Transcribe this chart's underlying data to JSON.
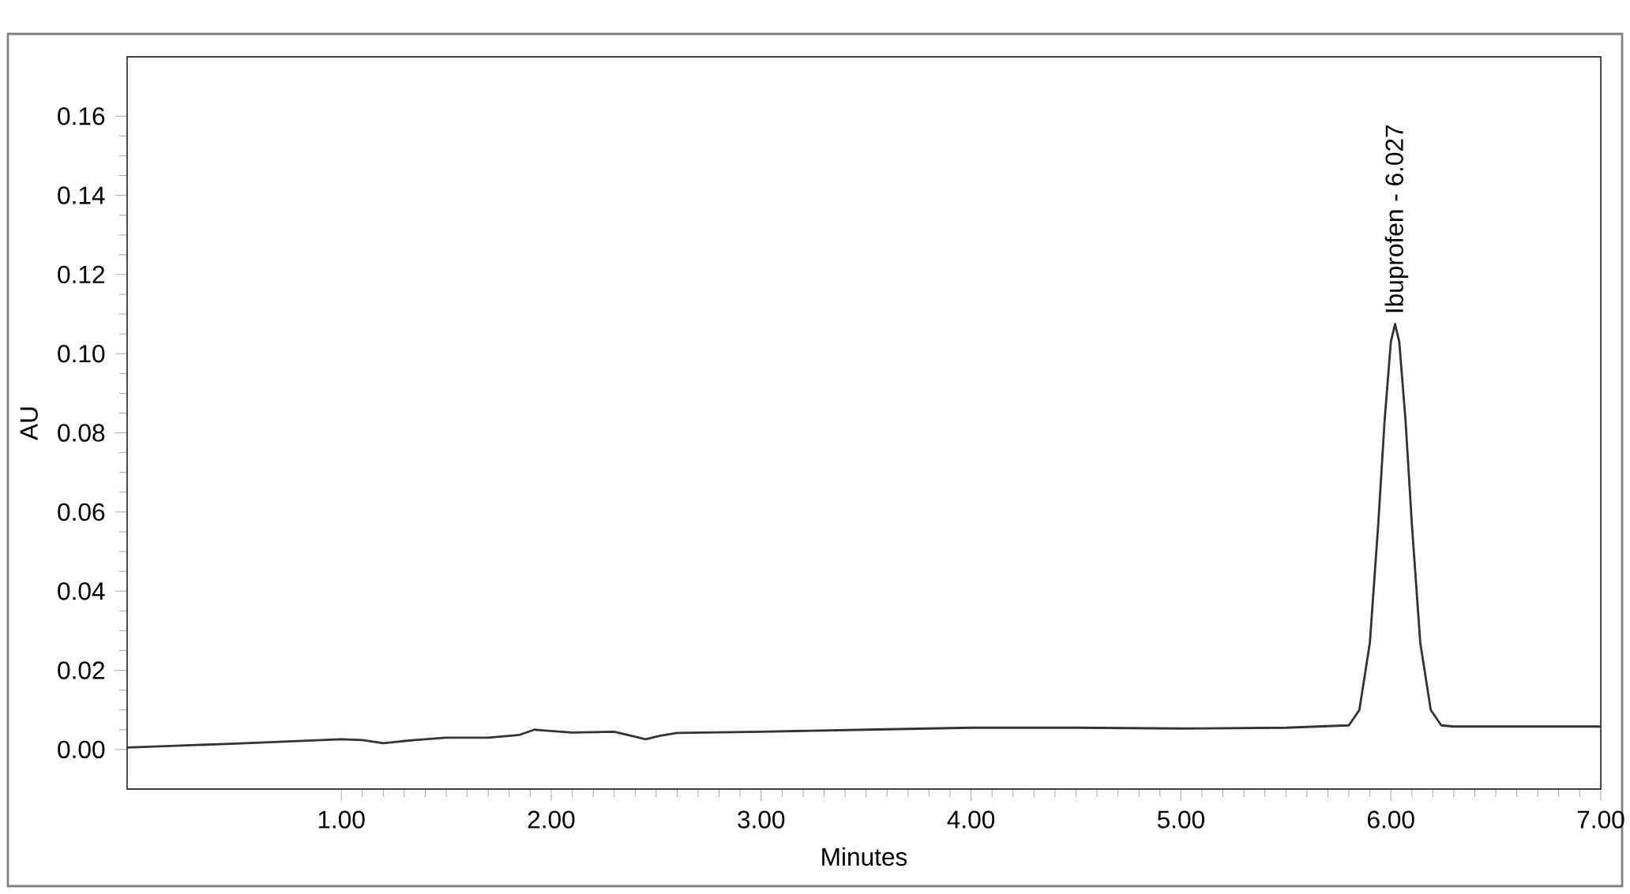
{
  "chart_data": {
    "type": "line",
    "xlabel": "Minutes",
    "ylabel": "AU",
    "color": "#333333",
    "x": [
      -0.02,
      0.5,
      1.0,
      1.1,
      1.2,
      1.35,
      1.5,
      1.7,
      1.85,
      1.92,
      1.97,
      2.1,
      2.3,
      2.38,
      2.45,
      2.52,
      2.6,
      3.0,
      3.5,
      4.0,
      4.5,
      5.0,
      5.5,
      5.8,
      5.85,
      5.9,
      5.94,
      5.97,
      6.0,
      6.02,
      6.04,
      6.07,
      6.1,
      6.14,
      6.19,
      6.24,
      6.3,
      6.6,
      7.0
    ],
    "values": [
      0.0005,
      0.0015,
      0.0026,
      0.0024,
      0.0016,
      0.0024,
      0.003,
      0.003,
      0.0037,
      0.005,
      0.0048,
      0.0043,
      0.0045,
      0.0035,
      0.0026,
      0.0035,
      0.0042,
      0.0045,
      0.005,
      0.0055,
      0.0055,
      0.0053,
      0.0055,
      0.0061,
      0.01,
      0.027,
      0.057,
      0.083,
      0.103,
      0.1075,
      0.103,
      0.083,
      0.057,
      0.027,
      0.01,
      0.0061,
      0.0058,
      0.0058,
      0.0058
    ],
    "xlim": [
      -0.02,
      7.0
    ],
    "ylim": [
      -0.01,
      0.175
    ],
    "xticks": [
      {
        "value": 1,
        "label": "1.00"
      },
      {
        "value": 2,
        "label": "2.00"
      },
      {
        "value": 3,
        "label": "3.00"
      },
      {
        "value": 4,
        "label": "4.00"
      },
      {
        "value": 5,
        "label": "5.00"
      },
      {
        "value": 6,
        "label": "6.00"
      },
      {
        "value": 7,
        "label": "7.00"
      }
    ],
    "yticks": [
      {
        "value": 0,
        "label": "0.00"
      },
      {
        "value": 0.02,
        "label": "0.02"
      },
      {
        "value": 0.04,
        "label": "0.04"
      },
      {
        "value": 0.06,
        "label": "0.06"
      },
      {
        "value": 0.08,
        "label": "0.08"
      },
      {
        "value": 0.1,
        "label": "0.10"
      },
      {
        "value": 0.12,
        "label": "0.12"
      },
      {
        "value": 0.14,
        "label": "0.14"
      },
      {
        "value": 0.16,
        "label": "0.16"
      }
    ],
    "annotations": [
      {
        "text": "Ibuprofen - 6.027",
        "x": 6.027,
        "y": 0.1075
      }
    ]
  }
}
